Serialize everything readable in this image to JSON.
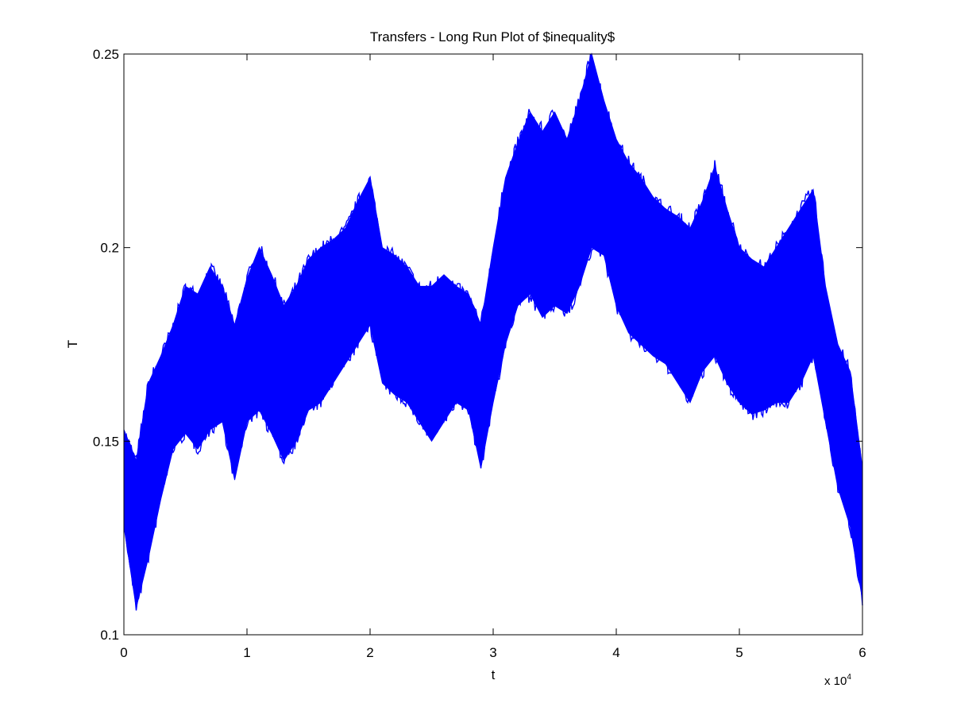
{
  "chart_data": {
    "type": "line",
    "title": "Transfers - Long Run Plot of $inequality$",
    "xlabel": "t",
    "ylabel": "T",
    "x_exponent_label": "x 10",
    "x_exponent_power": "4",
    "xlim": [
      0,
      60000
    ],
    "ylim": [
      0.1,
      0.25
    ],
    "xticks": [
      0,
      10000,
      20000,
      30000,
      40000,
      50000,
      60000
    ],
    "xtick_labels": [
      "0",
      "1",
      "2",
      "3",
      "4",
      "5",
      "6"
    ],
    "yticks": [
      0.1,
      0.15,
      0.2,
      0.25
    ],
    "ytick_labels": [
      "0.1",
      "0.15",
      "0.2",
      "0.25"
    ],
    "grid": false,
    "series": [
      {
        "color": "#0000ff",
        "band_min": [
          [
            0,
            0.128
          ],
          [
            1000,
            0.107
          ],
          [
            2000,
            0.12
          ],
          [
            3000,
            0.135
          ],
          [
            4000,
            0.148
          ],
          [
            5000,
            0.152
          ],
          [
            6000,
            0.148
          ],
          [
            7000,
            0.153
          ],
          [
            8000,
            0.155
          ],
          [
            9000,
            0.14
          ],
          [
            10000,
            0.155
          ],
          [
            11000,
            0.158
          ],
          [
            12000,
            0.152
          ],
          [
            13000,
            0.145
          ],
          [
            14000,
            0.15
          ],
          [
            15000,
            0.158
          ],
          [
            16000,
            0.16
          ],
          [
            17000,
            0.165
          ],
          [
            18000,
            0.17
          ],
          [
            19000,
            0.175
          ],
          [
            20000,
            0.18
          ],
          [
            21000,
            0.165
          ],
          [
            22000,
            0.162
          ],
          [
            23000,
            0.16
          ],
          [
            24000,
            0.155
          ],
          [
            25000,
            0.15
          ],
          [
            26000,
            0.155
          ],
          [
            27000,
            0.16
          ],
          [
            28000,
            0.158
          ],
          [
            29000,
            0.143
          ],
          [
            30000,
            0.16
          ],
          [
            31000,
            0.175
          ],
          [
            32000,
            0.185
          ],
          [
            33000,
            0.188
          ],
          [
            34000,
            0.182
          ],
          [
            35000,
            0.185
          ],
          [
            36000,
            0.183
          ],
          [
            37000,
            0.19
          ],
          [
            38000,
            0.2
          ],
          [
            39000,
            0.198
          ],
          [
            40000,
            0.185
          ],
          [
            41000,
            0.178
          ],
          [
            42000,
            0.175
          ],
          [
            43000,
            0.172
          ],
          [
            44000,
            0.17
          ],
          [
            45000,
            0.165
          ],
          [
            46000,
            0.16
          ],
          [
            47000,
            0.168
          ],
          [
            48000,
            0.172
          ],
          [
            49000,
            0.165
          ],
          [
            50000,
            0.16
          ],
          [
            51000,
            0.157
          ],
          [
            52000,
            0.158
          ],
          [
            53000,
            0.16
          ],
          [
            54000,
            0.16
          ],
          [
            55000,
            0.165
          ],
          [
            56000,
            0.172
          ],
          [
            57000,
            0.155
          ],
          [
            58000,
            0.138
          ],
          [
            59000,
            0.128
          ],
          [
            60000,
            0.109
          ]
        ],
        "band_max": [
          [
            0,
            0.153
          ],
          [
            1000,
            0.145
          ],
          [
            2000,
            0.165
          ],
          [
            3000,
            0.172
          ],
          [
            4000,
            0.18
          ],
          [
            5000,
            0.19
          ],
          [
            6000,
            0.188
          ],
          [
            7000,
            0.195
          ],
          [
            8000,
            0.19
          ],
          [
            9000,
            0.18
          ],
          [
            10000,
            0.192
          ],
          [
            11000,
            0.2
          ],
          [
            12000,
            0.193
          ],
          [
            13000,
            0.185
          ],
          [
            14000,
            0.19
          ],
          [
            15000,
            0.197
          ],
          [
            16000,
            0.2
          ],
          [
            17000,
            0.202
          ],
          [
            18000,
            0.205
          ],
          [
            19000,
            0.212
          ],
          [
            20000,
            0.218
          ],
          [
            21000,
            0.2
          ],
          [
            22000,
            0.198
          ],
          [
            23000,
            0.195
          ],
          [
            24000,
            0.19
          ],
          [
            25000,
            0.19
          ],
          [
            26000,
            0.193
          ],
          [
            27000,
            0.19
          ],
          [
            28000,
            0.188
          ],
          [
            29000,
            0.18
          ],
          [
            30000,
            0.2
          ],
          [
            31000,
            0.218
          ],
          [
            32000,
            0.227
          ],
          [
            33000,
            0.235
          ],
          [
            34000,
            0.23
          ],
          [
            35000,
            0.235
          ],
          [
            36000,
            0.228
          ],
          [
            37000,
            0.238
          ],
          [
            38000,
            0.25
          ],
          [
            39000,
            0.238
          ],
          [
            40000,
            0.228
          ],
          [
            41000,
            0.222
          ],
          [
            42000,
            0.218
          ],
          [
            43000,
            0.213
          ],
          [
            44000,
            0.21
          ],
          [
            45000,
            0.208
          ],
          [
            46000,
            0.205
          ],
          [
            47000,
            0.212
          ],
          [
            48000,
            0.221
          ],
          [
            49000,
            0.21
          ],
          [
            50000,
            0.2
          ],
          [
            51000,
            0.197
          ],
          [
            52000,
            0.195
          ],
          [
            53000,
            0.2
          ],
          [
            54000,
            0.205
          ],
          [
            55000,
            0.21
          ],
          [
            56000,
            0.215
          ],
          [
            57000,
            0.19
          ],
          [
            58000,
            0.175
          ],
          [
            59000,
            0.168
          ],
          [
            60000,
            0.143
          ]
        ]
      }
    ]
  }
}
